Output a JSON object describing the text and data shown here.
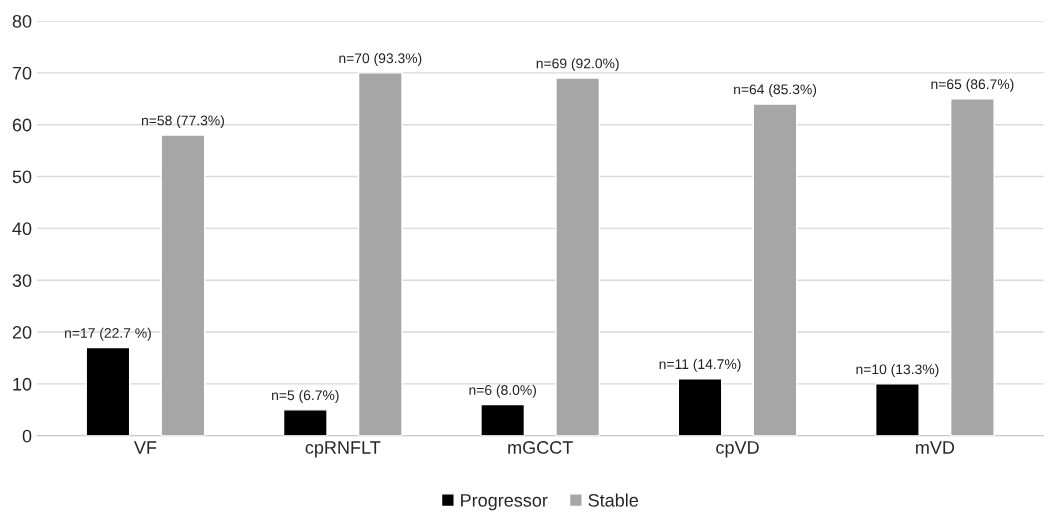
{
  "chart_data": {
    "type": "bar",
    "categories": [
      "VF",
      "cpRNFLT",
      "mGCCT",
      "cpVD",
      "mVD"
    ],
    "series": [
      {
        "name": "Progressor",
        "color": "#000000",
        "values": [
          17,
          5,
          6,
          11,
          10
        ],
        "value_labels": [
          "n=17 (22.7 %)",
          "n=5 (6.7%)",
          "n=6 (8.0%)",
          "n=11 (14.7%)",
          "n=10 (13.3%)"
        ]
      },
      {
        "name": "Stable",
        "color": "#a6a6a6",
        "values": [
          58,
          70,
          69,
          64,
          65
        ],
        "value_labels": [
          "n=58 (77.3%)",
          "n=70 (93.3%)",
          "n=69 (92.0%)",
          "n=64 (85.3%)",
          "n=65 (86.7%)"
        ]
      }
    ],
    "ylim": [
      0,
      80
    ],
    "yticks": [
      0,
      10,
      20,
      30,
      40,
      50,
      60,
      70,
      80
    ],
    "grid": "y",
    "legend": "bottom"
  }
}
